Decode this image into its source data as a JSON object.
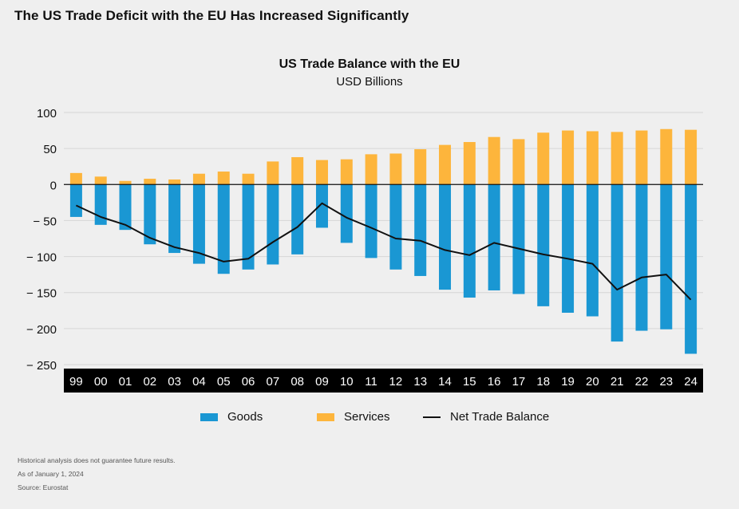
{
  "page": {
    "title": "The US Trade Deficit with the EU Has Increased Significantly"
  },
  "chart_data": {
    "type": "bar",
    "title": "US Trade Balance with the EU",
    "subtitle": "USD Billions",
    "categories": [
      "99",
      "00",
      "01",
      "02",
      "03",
      "04",
      "05",
      "06",
      "07",
      "08",
      "09",
      "10",
      "11",
      "12",
      "13",
      "14",
      "15",
      "16",
      "17",
      "18",
      "19",
      "20",
      "21",
      "22",
      "23",
      "24"
    ],
    "series": [
      {
        "name": "Goods",
        "type": "bar",
        "color": "#1a97d3",
        "values": [
          -45,
          -56,
          -63,
          -83,
          -95,
          -110,
          -124,
          -118,
          -111,
          -97,
          -60,
          -81,
          -102,
          -118,
          -127,
          -146,
          -157,
          -147,
          -152,
          -169,
          -178,
          -183,
          -218,
          -203,
          -201,
          -235
        ]
      },
      {
        "name": "Services",
        "type": "bar",
        "color": "#fdb53c",
        "values": [
          16,
          11,
          5,
          8,
          7,
          15,
          18,
          15,
          32,
          38,
          34,
          35,
          42,
          43,
          49,
          55,
          59,
          66,
          63,
          72,
          75,
          74,
          73,
          75,
          77,
          76
        ]
      },
      {
        "name": "Net Trade Balance",
        "type": "line",
        "color": "#111111",
        "values": [
          -29,
          -45,
          -56,
          -74,
          -87,
          -95,
          -107,
          -103,
          -80,
          -59,
          -26,
          -46,
          -60,
          -75,
          -78,
          -91,
          -98,
          -81,
          -89,
          -97,
          -103,
          -110,
          -146,
          -129,
          -125,
          -160
        ]
      }
    ],
    "ylim": [
      -250,
      100
    ],
    "yticks": [
      100,
      50,
      0,
      -50,
      -100,
      -150,
      -200,
      -250
    ],
    "ytick_labels": [
      "100",
      "50",
      "0",
      "− 50",
      "− 100",
      "− 150",
      "− 200",
      "− 250"
    ],
    "grid": true,
    "legend_position": "bottom"
  },
  "notes": [
    "Historical analysis does not guarantee future results.",
    "As of January 1, 2024",
    "Source: Eurostat"
  ]
}
